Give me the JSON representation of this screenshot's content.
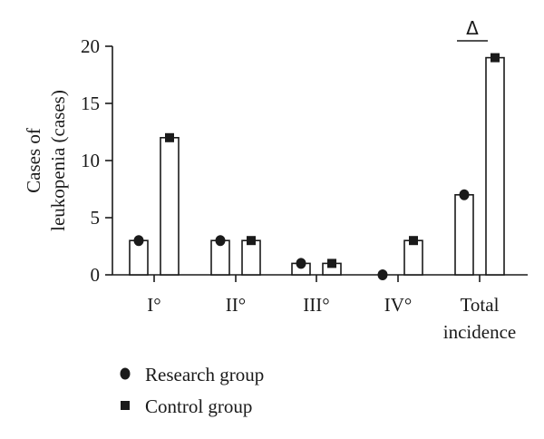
{
  "chart_data": {
    "type": "bar",
    "title": "",
    "xlabel": "",
    "ylabel_lines": [
      "Cases of",
      "leukopenia (cases)"
    ],
    "ylim": [
      0,
      20
    ],
    "yticks": [
      0,
      5,
      10,
      15,
      20
    ],
    "categories": [
      {
        "lines": [
          "I°"
        ]
      },
      {
        "lines": [
          "II°"
        ]
      },
      {
        "lines": [
          "III°"
        ]
      },
      {
        "lines": [
          "IV°"
        ]
      },
      {
        "lines": [
          "Total",
          "incidence"
        ]
      }
    ],
    "series": [
      {
        "name": "Research group",
        "marker": "circle",
        "values": [
          3,
          3,
          1,
          0,
          7
        ]
      },
      {
        "name": "Control group",
        "marker": "square",
        "values": [
          12,
          3,
          1,
          3,
          19
        ]
      }
    ],
    "annotations": [
      {
        "text": "Δ",
        "category_index": 4,
        "note_type": "significance-bracket"
      }
    ],
    "legend_position": "bottom-left",
    "grid": false
  },
  "colors": {
    "ink": "#1a1a1a",
    "bar_fill": "#ffffff"
  }
}
